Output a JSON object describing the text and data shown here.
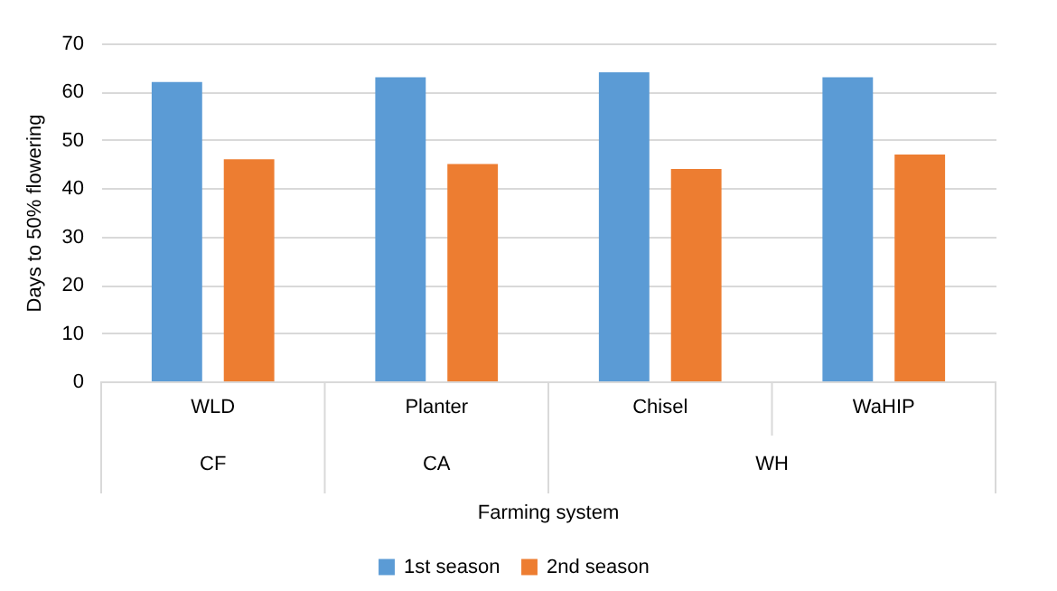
{
  "chart_data": {
    "type": "bar",
    "categories": [
      "WLD",
      "Planter",
      "Chisel",
      "WaHIP"
    ],
    "series": [
      {
        "name": "1st season",
        "color": "#5b9bd5",
        "values": [
          62,
          63,
          64,
          63
        ]
      },
      {
        "name": "2nd season",
        "color": "#ed7d31",
        "values": [
          46,
          45,
          44,
          47
        ]
      }
    ],
    "xlabel": "Farming system",
    "ylabel": "Days to 50% flowering",
    "annotations": [
      "CF",
      "CA",
      "WH"
    ],
    "ylim": [
      0,
      70
    ],
    "yticks": [
      0,
      10,
      20,
      30,
      40,
      50,
      60,
      70
    ],
    "grid": "y",
    "legend": "bottom"
  }
}
